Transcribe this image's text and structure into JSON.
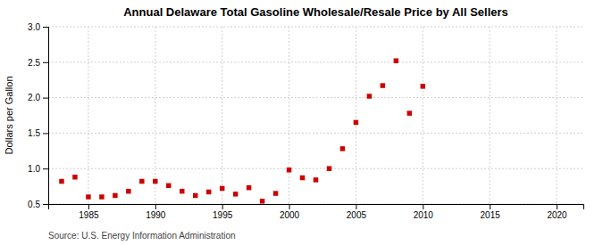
{
  "chart_data": {
    "type": "scatter",
    "title": "Annual Delaware Total Gasoline Wholesale/Resale Price by All Sellers",
    "ylabel": "Dollars per Gallon",
    "source": "Source: U.S. Energy Information Administration",
    "x": [
      1983,
      1984,
      1985,
      1986,
      1987,
      1988,
      1989,
      1990,
      1991,
      1992,
      1993,
      1994,
      1995,
      1996,
      1997,
      1998,
      1999,
      2000,
      2001,
      2002,
      2003,
      2004,
      2005,
      2006,
      2007,
      2008,
      2009,
      2010
    ],
    "values": [
      0.82,
      0.88,
      0.6,
      0.6,
      0.62,
      0.68,
      0.82,
      0.82,
      0.76,
      0.68,
      0.62,
      0.67,
      0.72,
      0.64,
      0.73,
      0.54,
      0.65,
      0.98,
      0.87,
      0.84,
      1.0,
      1.28,
      1.65,
      2.02,
      2.17,
      2.52,
      1.78,
      2.16
    ],
    "color": "#cc0000",
    "marker": "square",
    "xlim": [
      1982,
      2022
    ],
    "ylim": [
      0.5,
      3.0
    ],
    "xticks": [
      1985,
      1990,
      1995,
      2000,
      2005,
      2010,
      2015,
      2020
    ],
    "yticks": [
      0.5,
      {
        "value": 1.0,
        "label": "1.0"
      },
      1.5,
      {
        "value": 2.0,
        "label": "2.0"
      },
      2.5,
      {
        "value": 3.0,
        "label": "3.0"
      }
    ],
    "grid": true
  }
}
